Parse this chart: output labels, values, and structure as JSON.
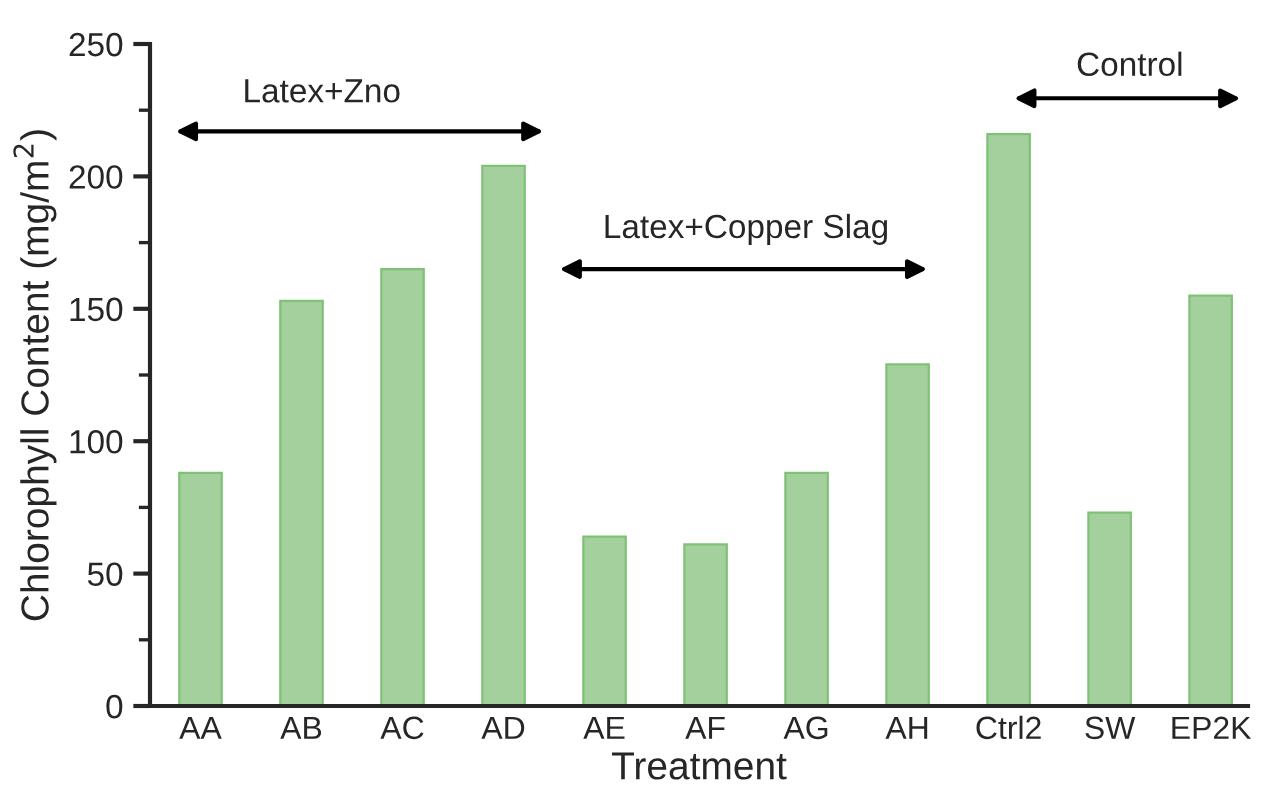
{
  "chart_data": {
    "type": "bar",
    "xlabel": "Treatment",
    "ylabel": "Chlorophyll Content (mg/m$^{2}$)",
    "categories": [
      "AA",
      "AB",
      "AC",
      "AD",
      "AE",
      "AF",
      "AG",
      "AH",
      "Ctrl2",
      "SW",
      "EP2K"
    ],
    "values": [
      88,
      153,
      165,
      204,
      64,
      61,
      88,
      129,
      216,
      73,
      155
    ],
    "color": "#a3d09c",
    "ylim": [
      0,
      250
    ],
    "yticks": [
      0,
      50,
      100,
      150,
      200,
      250
    ],
    "grid": false,
    "annotations": [
      "Latex+Zno",
      "Latex+Copper Slag",
      "Control"
    ]
  }
}
